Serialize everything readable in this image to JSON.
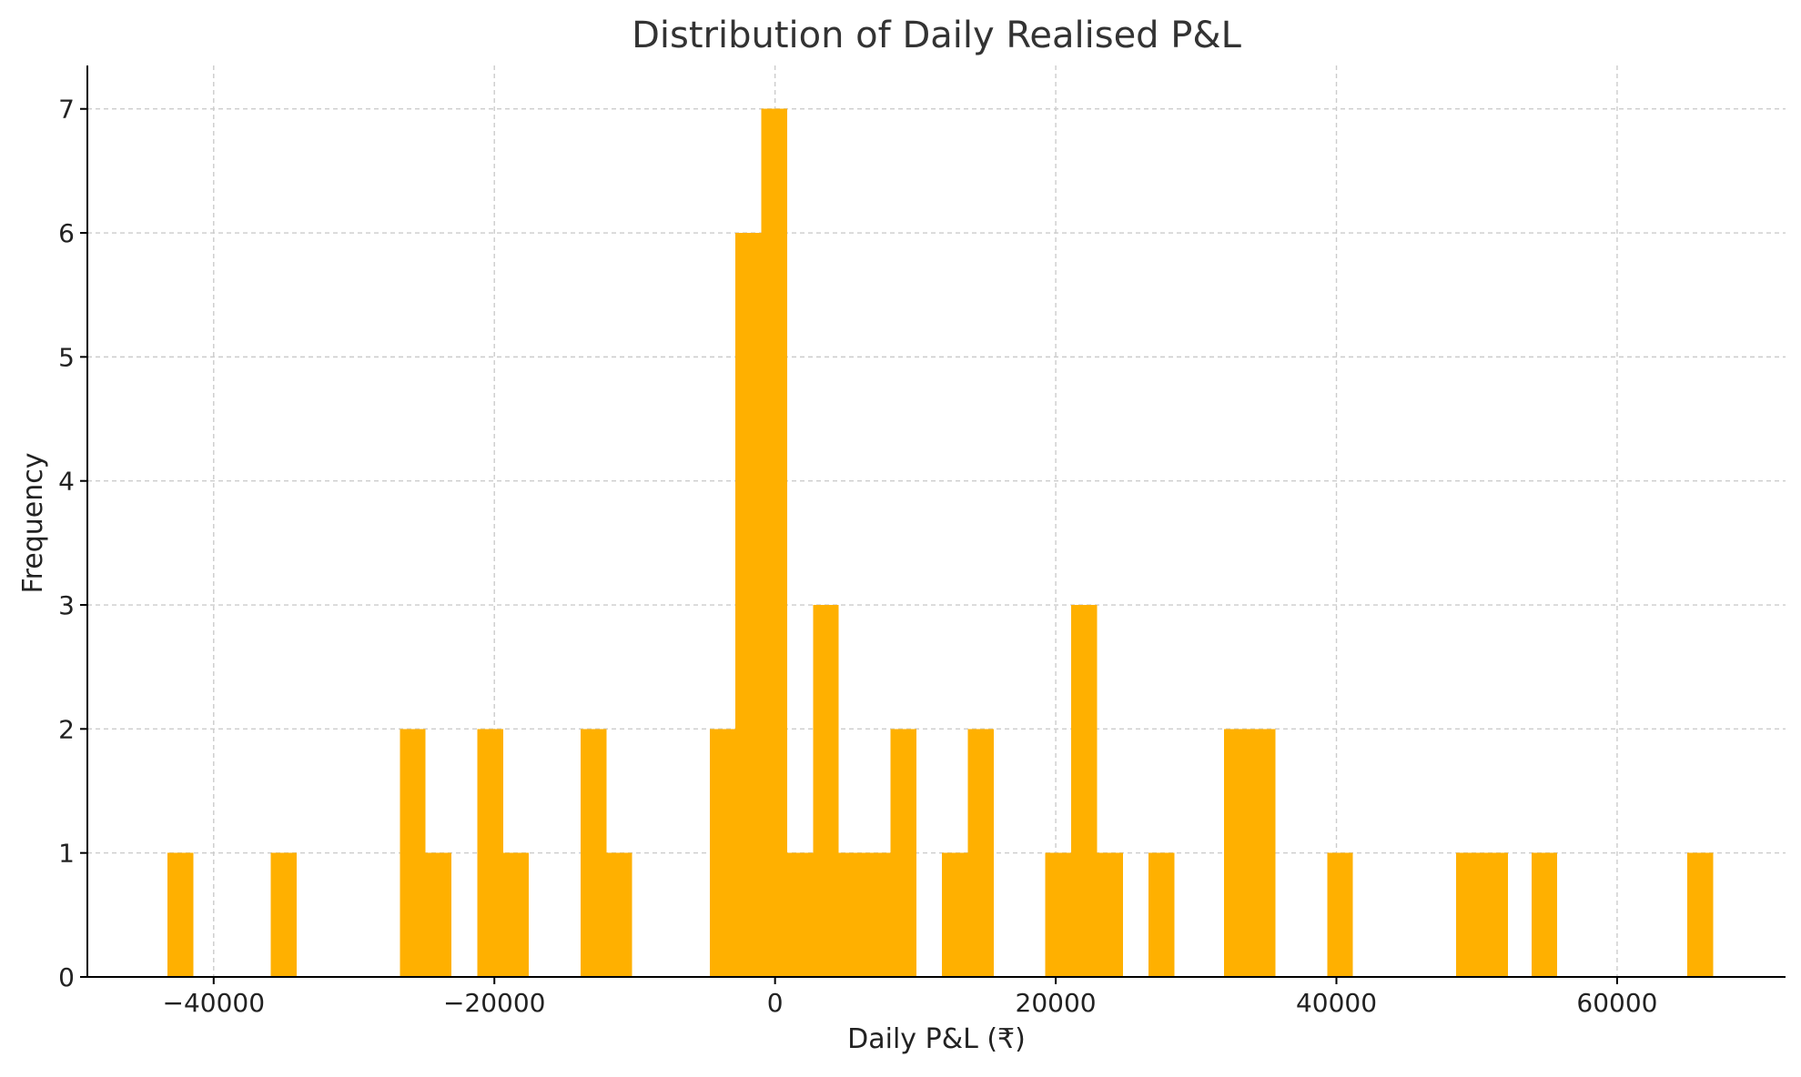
{
  "chart_data": {
    "type": "bar",
    "subtype": "histogram",
    "title": "Distribution of Daily Realised P&L",
    "xlabel": "Daily P&L (₹)",
    "ylabel": "Frequency",
    "bar_color": "#ffb000",
    "grid": true,
    "grid_color": "#cccccc",
    "xlim": [
      -49000,
      72000
    ],
    "ylim": [
      0,
      7.35
    ],
    "xticks": [
      -40000,
      -20000,
      0,
      20000,
      40000,
      60000
    ],
    "xtick_labels": [
      "−40000",
      "−20000",
      "0",
      "20000",
      "40000",
      "60000"
    ],
    "yticks": [
      0,
      1,
      2,
      3,
      4,
      5,
      6,
      7
    ],
    "ytick_labels": [
      "0",
      "1",
      "2",
      "3",
      "4",
      "5",
      "6",
      "7"
    ],
    "bin_width": 1840,
    "bins": [
      {
        "start": -43300,
        "end": -41460,
        "count": 1
      },
      {
        "start": -35940,
        "end": -34100,
        "count": 1
      },
      {
        "start": -26740,
        "end": -24900,
        "count": 2
      },
      {
        "start": -24900,
        "end": -23060,
        "count": 1
      },
      {
        "start": -21220,
        "end": -19380,
        "count": 2
      },
      {
        "start": -19380,
        "end": -17540,
        "count": 1
      },
      {
        "start": -13860,
        "end": -12020,
        "count": 2
      },
      {
        "start": -12020,
        "end": -10180,
        "count": 1
      },
      {
        "start": -4660,
        "end": -2820,
        "count": 2
      },
      {
        "start": -2820,
        "end": -980,
        "count": 6
      },
      {
        "start": -980,
        "end": 860,
        "count": 7
      },
      {
        "start": 860,
        "end": 2700,
        "count": 1
      },
      {
        "start": 2700,
        "end": 4540,
        "count": 3
      },
      {
        "start": 4540,
        "end": 6380,
        "count": 1
      },
      {
        "start": 6380,
        "end": 8220,
        "count": 1
      },
      {
        "start": 8220,
        "end": 10060,
        "count": 2
      },
      {
        "start": 11900,
        "end": 13740,
        "count": 1
      },
      {
        "start": 13740,
        "end": 15580,
        "count": 2
      },
      {
        "start": 19260,
        "end": 21100,
        "count": 1
      },
      {
        "start": 21100,
        "end": 22940,
        "count": 3
      },
      {
        "start": 22940,
        "end": 24780,
        "count": 1
      },
      {
        "start": 26620,
        "end": 28460,
        "count": 1
      },
      {
        "start": 31980,
        "end": 33820,
        "count": 2
      },
      {
        "start": 33820,
        "end": 35660,
        "count": 2
      },
      {
        "start": 39340,
        "end": 41180,
        "count": 1
      },
      {
        "start": 48540,
        "end": 50380,
        "count": 1
      },
      {
        "start": 50380,
        "end": 52220,
        "count": 1
      },
      {
        "start": 53900,
        "end": 55740,
        "count": 1
      },
      {
        "start": 65000,
        "end": 66840,
        "count": 1
      }
    ]
  }
}
